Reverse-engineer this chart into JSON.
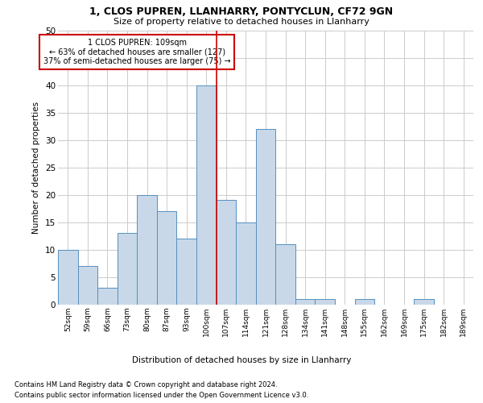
{
  "title1": "1, CLOS PUPREN, LLANHARRY, PONTYCLUN, CF72 9GN",
  "title2": "Size of property relative to detached houses in Llanharry",
  "xlabel": "Distribution of detached houses by size in Llanharry",
  "ylabel": "Number of detached properties",
  "footer1": "Contains HM Land Registry data © Crown copyright and database right 2024.",
  "footer2": "Contains public sector information licensed under the Open Government Licence v3.0.",
  "annotation_line1": "1 CLOS PUPREN: 109sqm",
  "annotation_line2": "← 63% of detached houses are smaller (127)",
  "annotation_line3": "37% of semi-detached houses are larger (75) →",
  "bar_labels": [
    "52sqm",
    "59sqm",
    "66sqm",
    "73sqm",
    "80sqm",
    "87sqm",
    "93sqm",
    "100sqm",
    "107sqm",
    "114sqm",
    "121sqm",
    "128sqm",
    "134sqm",
    "141sqm",
    "148sqm",
    "155sqm",
    "162sqm",
    "169sqm",
    "175sqm",
    "182sqm",
    "189sqm"
  ],
  "bar_values": [
    10,
    7,
    3,
    13,
    20,
    17,
    12,
    40,
    19,
    15,
    32,
    11,
    1,
    1,
    0,
    1,
    0,
    0,
    1,
    0,
    0
  ],
  "bar_color": "#c8d8e8",
  "bar_edge_color": "#5590c0",
  "vline_color": "#cc0000",
  "annotation_box_color": "#cc0000",
  "background_color": "#ffffff",
  "grid_color": "#cccccc",
  "ylim": [
    0,
    50
  ],
  "yticks": [
    0,
    5,
    10,
    15,
    20,
    25,
    30,
    35,
    40,
    45,
    50
  ]
}
